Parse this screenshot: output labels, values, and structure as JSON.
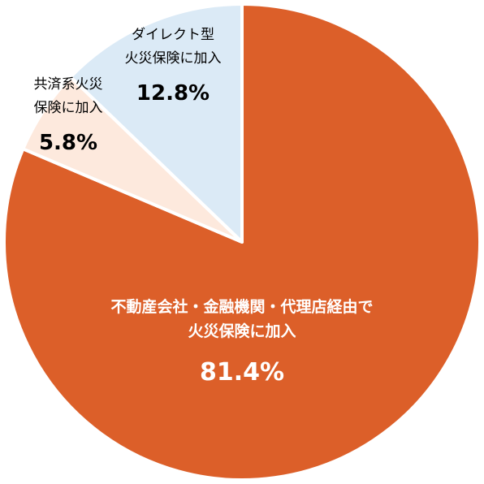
{
  "chart_data": {
    "type": "pie",
    "start_angle_deg": 0,
    "direction": "clockwise",
    "slices": [
      {
        "label_lines": [
          "不動産会社・金融機関・代理店経由で",
          "火災保険に加入"
        ],
        "value": 81.4,
        "value_label": "81.4%",
        "color": "#dc5f29",
        "label_color": "#ffffff"
      },
      {
        "label_lines": [
          "共済系火災",
          "保険に加入"
        ],
        "value": 5.8,
        "value_label": "5.8%",
        "color": "#fde9dd",
        "label_color": "#000000"
      },
      {
        "label_lines": [
          "ダイレクト型",
          "火災保険に加入"
        ],
        "value": 12.8,
        "value_label": "12.8%",
        "color": "#dbeaf6",
        "label_color": "#000000"
      }
    ]
  }
}
